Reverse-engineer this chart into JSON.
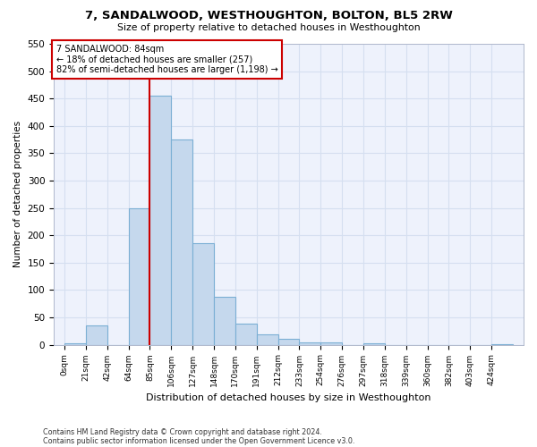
{
  "title": "7, SANDALWOOD, WESTHOUGHTON, BOLTON, BL5 2RW",
  "subtitle": "Size of property relative to detached houses in Westhoughton",
  "xlabel": "Distribution of detached houses by size in Westhoughton",
  "ylabel": "Number of detached properties",
  "bar_color": "#c5d8ed",
  "bar_edge_color": "#7bafd4",
  "categories": [
    "0sqm",
    "21sqm",
    "42sqm",
    "64sqm",
    "85sqm",
    "106sqm",
    "127sqm",
    "148sqm",
    "170sqm",
    "191sqm",
    "212sqm",
    "233sqm",
    "254sqm",
    "276sqm",
    "297sqm",
    "318sqm",
    "339sqm",
    "360sqm",
    "382sqm",
    "403sqm",
    "424sqm"
  ],
  "values": [
    2,
    35,
    0,
    250,
    455,
    375,
    185,
    88,
    38,
    19,
    10,
    5,
    4,
    0,
    2,
    0,
    0,
    0,
    0,
    0,
    1
  ],
  "ylim": [
    0,
    550
  ],
  "yticks": [
    0,
    50,
    100,
    150,
    200,
    250,
    300,
    350,
    400,
    450,
    500,
    550
  ],
  "annotation_text": "7 SANDALWOOD: 84sqm\n← 18% of detached houses are smaller (257)\n82% of semi-detached houses are larger (1,198) →",
  "annotation_box_color": "#ffffff",
  "annotation_box_edge_color": "#cc0000",
  "footer_line1": "Contains HM Land Registry data © Crown copyright and database right 2024.",
  "footer_line2": "Contains public sector information licensed under the Open Government Licence v3.0.",
  "grid_color": "#d5dff0",
  "background_color": "#eef2fc",
  "red_line_color": "#cc0000",
  "bin_width": 21
}
